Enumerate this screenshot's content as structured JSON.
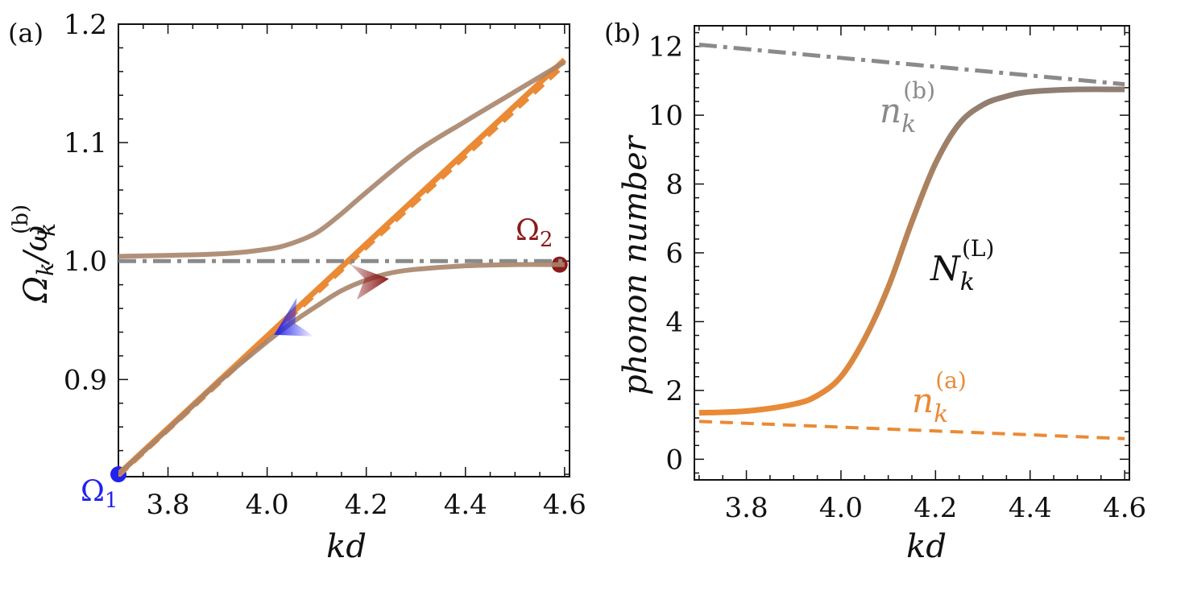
{
  "colors": {
    "orange": "#ea8a35",
    "gray": "#8a8a8a",
    "brown": "#a8846c",
    "blue": "#2222ee",
    "darkred": "#8b1a1a",
    "axis": "#111111"
  },
  "chart_data": [
    {
      "type": "line",
      "panel_label": "(a)",
      "xlabel": "kd",
      "ylabel": "Ω_k / ω_k^(b)",
      "xlim": [
        3.7,
        4.61
      ],
      "ylim": [
        0.818,
        1.2
      ],
      "xticks": [
        3.8,
        4.0,
        4.2,
        4.4,
        4.6
      ],
      "xtick_labels": [
        "3.8",
        "4.0",
        "4.2",
        "4.4",
        "4.6"
      ],
      "yticks": [
        0.9,
        1.0,
        1.1,
        1.2
      ],
      "ytick_labels": [
        "0.9",
        "1.0",
        "1.1",
        "1.2"
      ],
      "series": [
        {
          "name": "orange solid",
          "style": "solid",
          "color": "orange",
          "x": [
            3.7,
            4.6
          ],
          "y": [
            0.82,
            1.17
          ]
        },
        {
          "name": "orange dashed",
          "style": "dashed",
          "color": "orange",
          "x": [
            3.7,
            4.6
          ],
          "y": [
            0.818,
            1.165
          ]
        },
        {
          "name": "gray dash-dot",
          "style": "dashdot",
          "color": "gray",
          "x": [
            3.7,
            4.6
          ],
          "y": [
            1.0,
            1.0
          ]
        },
        {
          "name": "upper branch",
          "style": "solid",
          "color": "brown",
          "x": [
            3.7,
            3.9,
            4.0,
            4.05,
            4.1,
            4.15,
            4.2,
            4.3,
            4.4,
            4.5,
            4.6
          ],
          "y": [
            1.004,
            1.006,
            1.01,
            1.015,
            1.024,
            1.04,
            1.058,
            1.092,
            1.118,
            1.143,
            1.168
          ]
        },
        {
          "name": "lower branch",
          "style": "solid",
          "color": "brown",
          "x": [
            3.7,
            3.8,
            3.9,
            4.0,
            4.05,
            4.1,
            4.15,
            4.2,
            4.25,
            4.3,
            4.4,
            4.5,
            4.6
          ],
          "y": [
            0.82,
            0.858,
            0.897,
            0.932,
            0.948,
            0.962,
            0.975,
            0.984,
            0.99,
            0.993,
            0.996,
            0.997,
            0.997
          ]
        }
      ],
      "markers": [
        {
          "label": "Ω",
          "sub": "1",
          "x": 3.7,
          "y": 0.82,
          "color": "blue"
        },
        {
          "label": "Ω",
          "sub": "2",
          "x": 4.59,
          "y": 0.997,
          "color": "darkred"
        }
      ],
      "arrows": [
        {
          "x": 4.05,
          "y": 0.95,
          "direction": "down-left",
          "color": "blue"
        },
        {
          "x": 4.21,
          "y": 0.985,
          "direction": "right",
          "color": "darkred"
        }
      ]
    },
    {
      "type": "line",
      "panel_label": "(b)",
      "xlabel": "kd",
      "ylabel": "phonon number",
      "xlim": [
        3.69,
        4.61
      ],
      "ylim": [
        -0.6,
        12.6
      ],
      "xticks": [
        3.8,
        4.0,
        4.2,
        4.4,
        4.6
      ],
      "xtick_labels": [
        "3.8",
        "4.0",
        "4.2",
        "4.4",
        "4.6"
      ],
      "yticks": [
        0,
        2,
        4,
        6,
        8,
        10,
        12
      ],
      "ytick_labels": [
        "0",
        "2",
        "4",
        "6",
        "8",
        "10",
        "12"
      ],
      "series": [
        {
          "name": "n_k^(b)",
          "style": "dashdot",
          "color": "gray",
          "x": [
            3.7,
            4.6
          ],
          "y": [
            12.05,
            10.9
          ]
        },
        {
          "name": "n_k^(a)",
          "style": "dashed",
          "color": "orange",
          "x": [
            3.7,
            4.6
          ],
          "y": [
            1.1,
            0.6
          ]
        },
        {
          "name": "N_k^(L)",
          "style": "solid",
          "color": "gradient",
          "x": [
            3.7,
            3.8,
            3.9,
            3.95,
            4.0,
            4.05,
            4.1,
            4.15,
            4.2,
            4.25,
            4.3,
            4.35,
            4.4,
            4.5,
            4.6
          ],
          "y": [
            1.35,
            1.4,
            1.6,
            1.85,
            2.4,
            3.5,
            5.0,
            6.9,
            8.6,
            9.75,
            10.3,
            10.55,
            10.68,
            10.75,
            10.75
          ]
        }
      ]
    }
  ],
  "annotations": {
    "a_y_label_main": "Ω",
    "a_y_label_sub": "k",
    "a_y_label_omega": "ω",
    "a_y_label_sup": "(b)",
    "a_y_label_slash": "/",
    "omega1_main": "Ω",
    "omega1_sub": "1",
    "omega2_main": "Ω",
    "omega2_sub": "2",
    "nb_main": "n",
    "nb_sub": "k",
    "nb_sup": "(b)",
    "na_main": "n",
    "na_sub": "k",
    "na_sup": "(a)",
    "NL_main": "N",
    "NL_sub": "k",
    "NL_sup": "(L)"
  }
}
